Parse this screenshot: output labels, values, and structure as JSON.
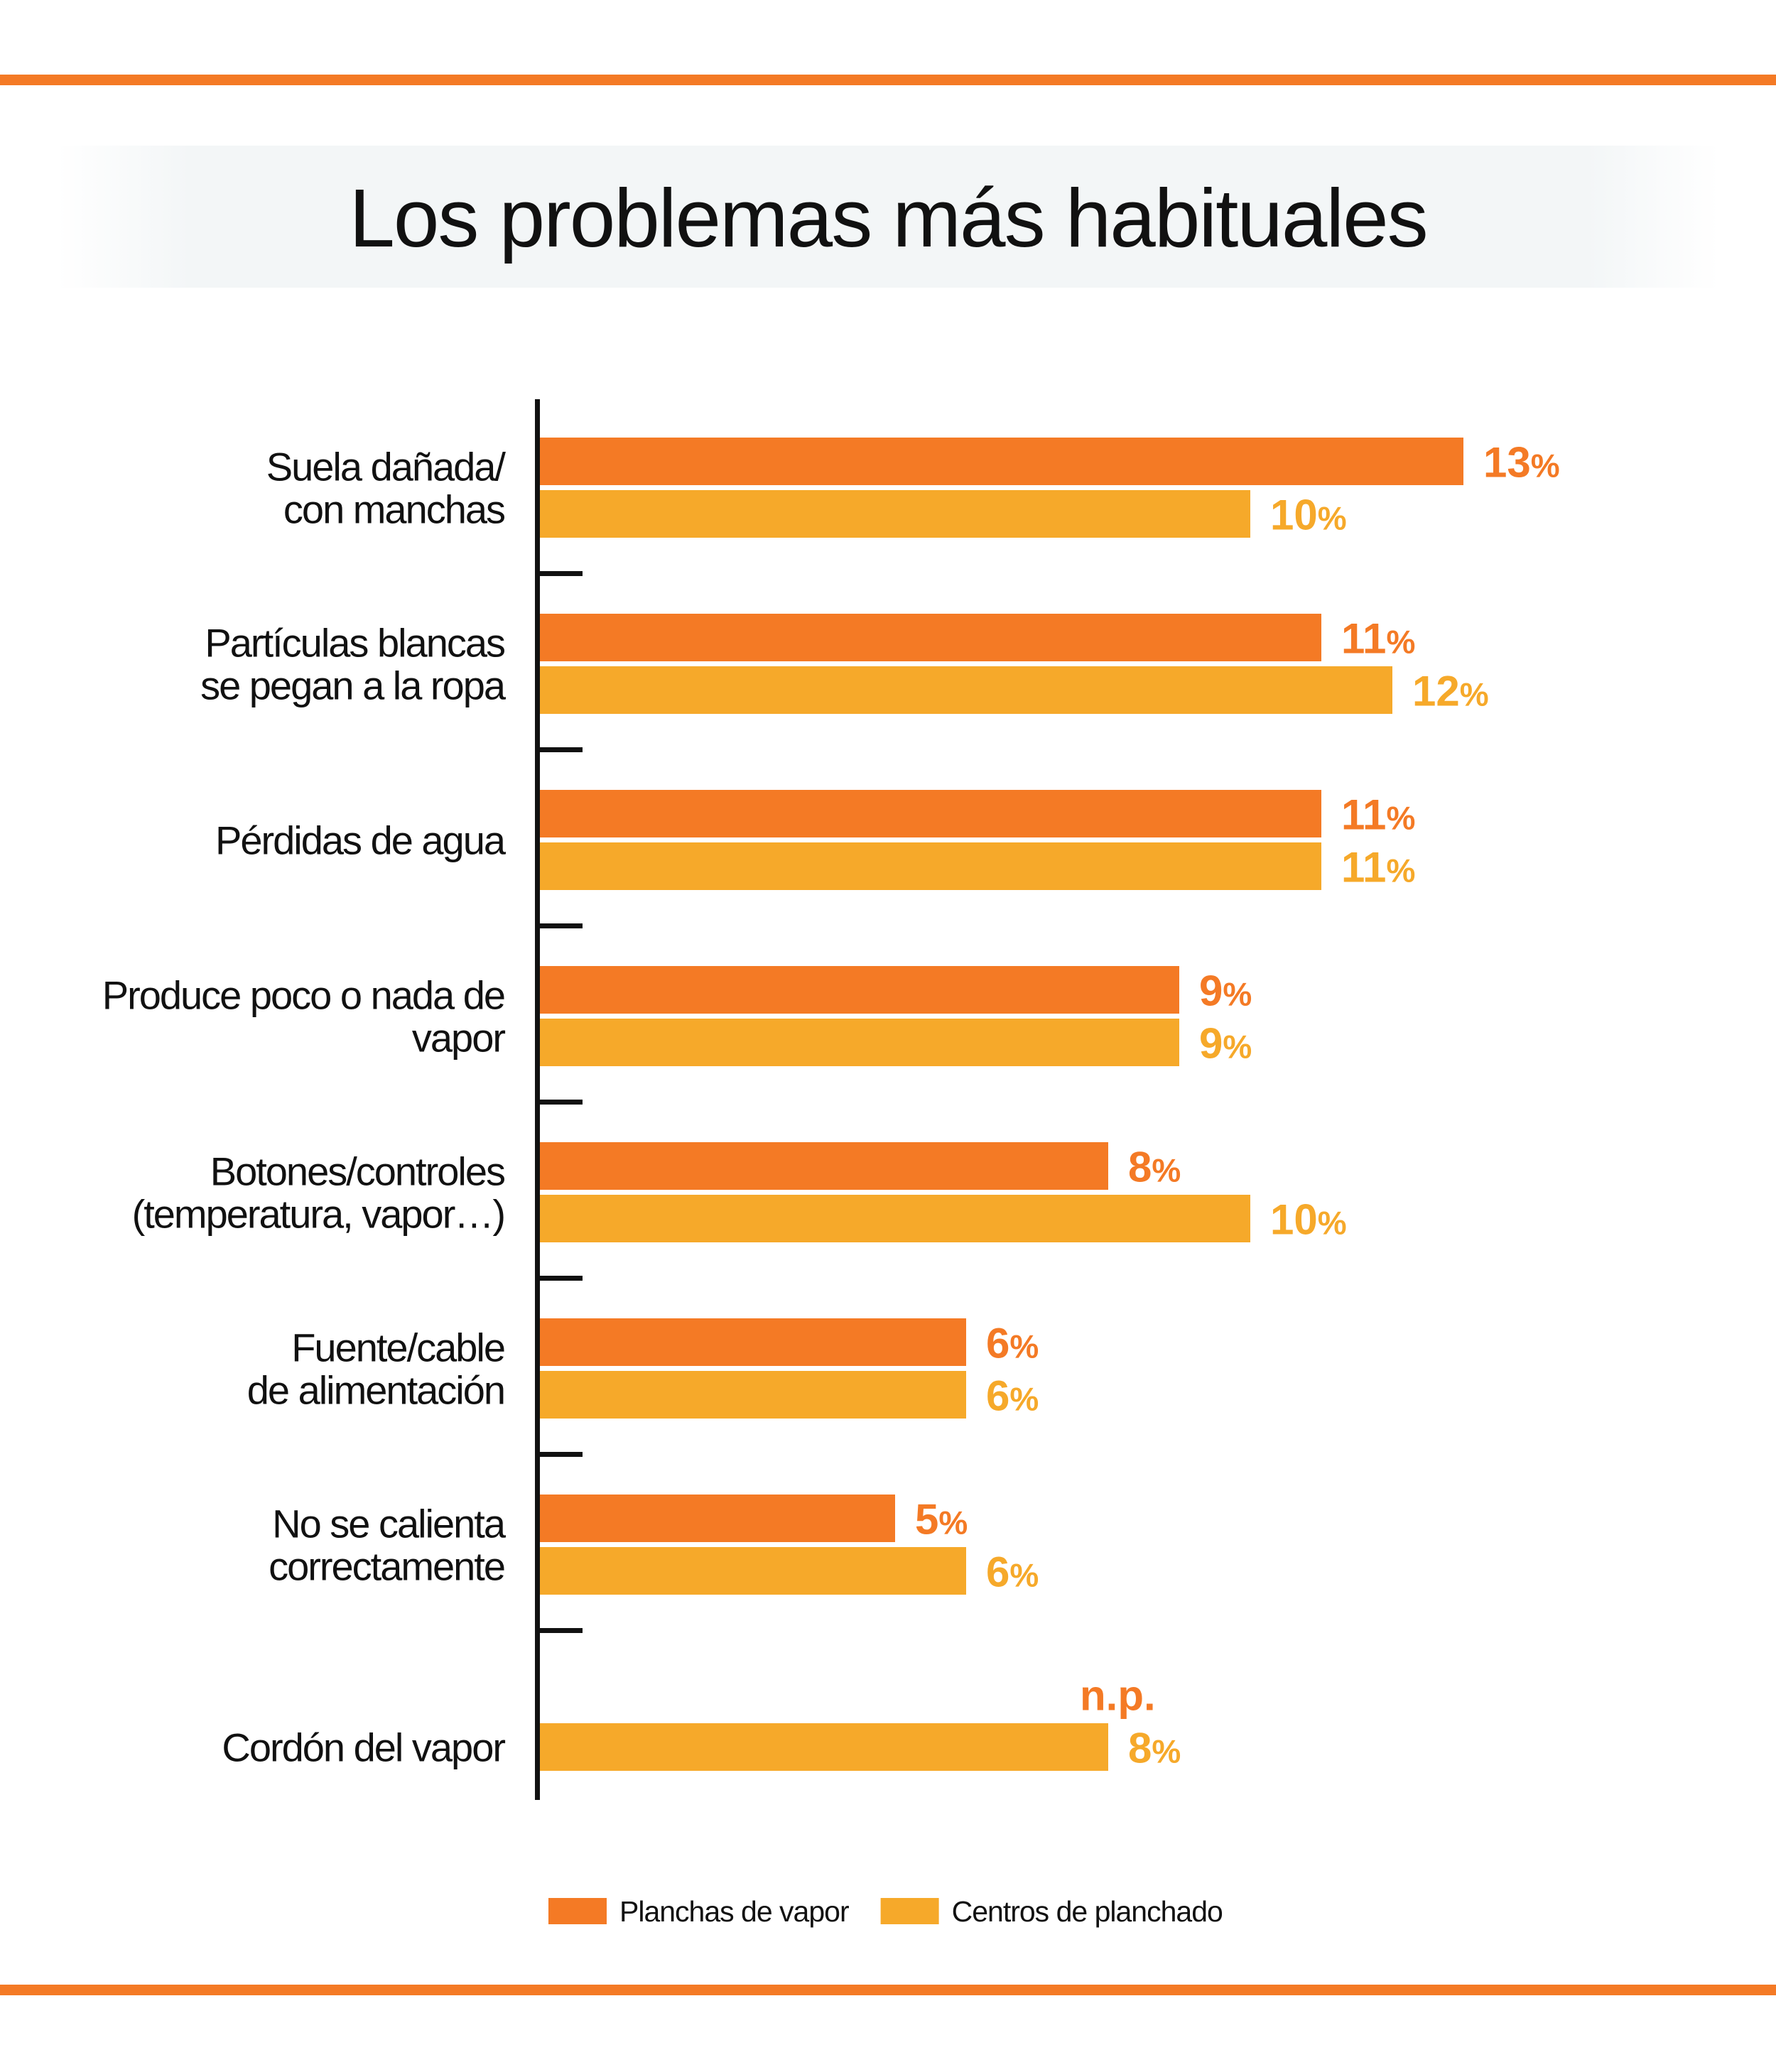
{
  "chart_data": {
    "type": "bar",
    "orientation": "horizontal",
    "title": "Los problemas más habituales",
    "categories": [
      [
        "Suela dañada/",
        "con manchas"
      ],
      [
        "Partículas blancas",
        "se pegan a la ropa"
      ],
      [
        "Pérdidas de agua"
      ],
      [
        "Produce poco o nada de",
        "vapor"
      ],
      [
        "Botones/controles",
        "(temperatura, vapor…)"
      ],
      [
        "Fuente/cable",
        "de alimentación"
      ],
      [
        "No se calienta",
        "correctamente"
      ],
      [
        "Cordón del vapor"
      ]
    ],
    "series": [
      {
        "name": "Planchas de vapor",
        "color": "#f47a25",
        "values": [
          13,
          11,
          11,
          9,
          8,
          6,
          5,
          null
        ],
        "labels": [
          "13%",
          "11%",
          "11%",
          "9%",
          "8%",
          "6%",
          "5%",
          "n.p."
        ]
      },
      {
        "name": "Centros de planchado",
        "color": "#f6a92a",
        "values": [
          10,
          12,
          11,
          9,
          10,
          6,
          6,
          8
        ],
        "labels": [
          "10%",
          "12%",
          "11%",
          "9%",
          "10%",
          "6%",
          "6%",
          "8%"
        ]
      }
    ],
    "unit": "%",
    "xaxis_visible": false,
    "grid": false,
    "legend_position": "bottom"
  }
}
